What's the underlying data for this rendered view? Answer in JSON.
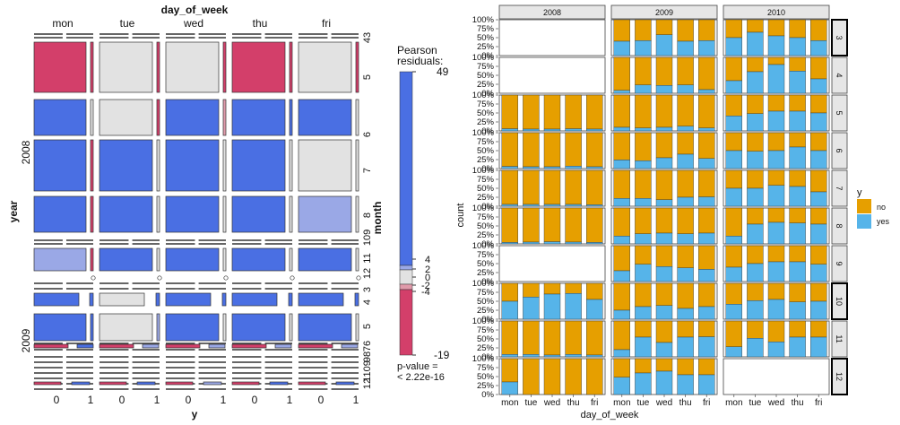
{
  "mosaic": {
    "top_title": "day_of_week",
    "columns": [
      "mon",
      "tue",
      "wed",
      "thu",
      "fri"
    ],
    "x_title": "y",
    "y_levels": [
      "0",
      "1"
    ],
    "year_title": "year",
    "years": [
      "2008",
      "2009"
    ],
    "month_title": "month",
    "month_labels": [
      "43",
      "5",
      "6",
      "7",
      "8",
      "109",
      "11",
      "12",
      "3",
      "4",
      "5",
      "76",
      "98",
      "1109",
      "12"
    ],
    "legend": {
      "title_line1": "Pearson",
      "title_line2": "residuals:",
      "max": "49",
      "ticks": [
        "4",
        "2",
        "0",
        "-2",
        "-4"
      ],
      "min": "-19",
      "pvalue_line1": "p-value =",
      "pvalue_line2": "< 2.22e-16",
      "colors": {
        "high": "#4a6fe3",
        "mid_high": "#9aa8e6",
        "neutral": "#e2e2e2",
        "mid_low": "#e09aaa",
        "low": "#d33f6a"
      }
    }
  },
  "chart_data": {
    "type": "bar",
    "stacked": true,
    "position": "fill",
    "xlabel": "day_of_week",
    "ylabel": "count",
    "categories": [
      "mon",
      "tue",
      "wed",
      "thu",
      "fri"
    ],
    "y_ticks": [
      "0%",
      "25%",
      "50%",
      "75%",
      "100%"
    ],
    "col_facets": [
      "2008",
      "2009",
      "2010"
    ],
    "row_facets": [
      "3",
      "4",
      "5",
      "6",
      "7",
      "8",
      "9",
      "10",
      "11",
      "12"
    ],
    "legend": {
      "title": "y",
      "items": [
        {
          "label": "no",
          "color": "#E69F00"
        },
        {
          "label": "yes",
          "color": "#56B4E9"
        }
      ]
    },
    "yes_fraction": {
      "2008": [
        null,
        null,
        [
          0.06,
          0.05,
          0.05,
          0.06,
          0.05
        ],
        [
          0.06,
          0.05,
          0.05,
          0.07,
          0.05
        ],
        [
          0.05,
          0.05,
          0.05,
          0.05,
          0.04
        ],
        [
          0.04,
          0.05,
          0.06,
          0.05,
          0.04
        ],
        null,
        [
          0.5,
          0.62,
          0.7,
          0.72,
          0.55
        ],
        [
          0.07,
          0.07,
          0.05,
          0.07,
          0.05
        ],
        [
          0.35,
          0.0,
          0.0,
          0.0,
          0.0
        ]
      ],
      "2009": [
        [
          0.4,
          0.42,
          0.58,
          0.4,
          0.42
        ],
        [
          0.08,
          0.23,
          0.22,
          0.23,
          0.1
        ],
        [
          0.1,
          0.08,
          0.1,
          0.13,
          0.08
        ],
        [
          0.24,
          0.22,
          0.3,
          0.4,
          0.28
        ],
        [
          0.22,
          0.22,
          0.18,
          0.25,
          0.26
        ],
        [
          0.22,
          0.28,
          0.3,
          0.28,
          0.3
        ],
        [
          0.3,
          0.48,
          0.42,
          0.38,
          0.34
        ],
        [
          0.25,
          0.35,
          0.38,
          0.3,
          0.35
        ],
        [
          0.2,
          0.55,
          0.4,
          0.55,
          0.56
        ],
        [
          0.48,
          0.6,
          0.65,
          0.55,
          0.55
        ]
      ],
      "2010": [
        [
          0.5,
          0.65,
          0.55,
          0.5,
          0.42
        ],
        [
          0.35,
          0.6,
          0.8,
          0.62,
          0.4
        ],
        [
          0.42,
          0.48,
          0.55,
          0.55,
          0.5
        ],
        [
          0.5,
          0.48,
          0.5,
          0.6,
          0.5
        ],
        [
          0.5,
          0.5,
          0.58,
          0.55,
          0.4
        ],
        [
          0.22,
          0.55,
          0.6,
          0.58,
          0.55
        ],
        [
          0.4,
          0.5,
          0.55,
          0.55,
          0.48
        ],
        [
          0.42,
          0.52,
          0.55,
          0.48,
          0.5
        ],
        [
          0.28,
          0.52,
          0.42,
          0.55,
          0.55
        ],
        [
          null,
          null,
          null,
          null,
          null
        ]
      ]
    }
  }
}
